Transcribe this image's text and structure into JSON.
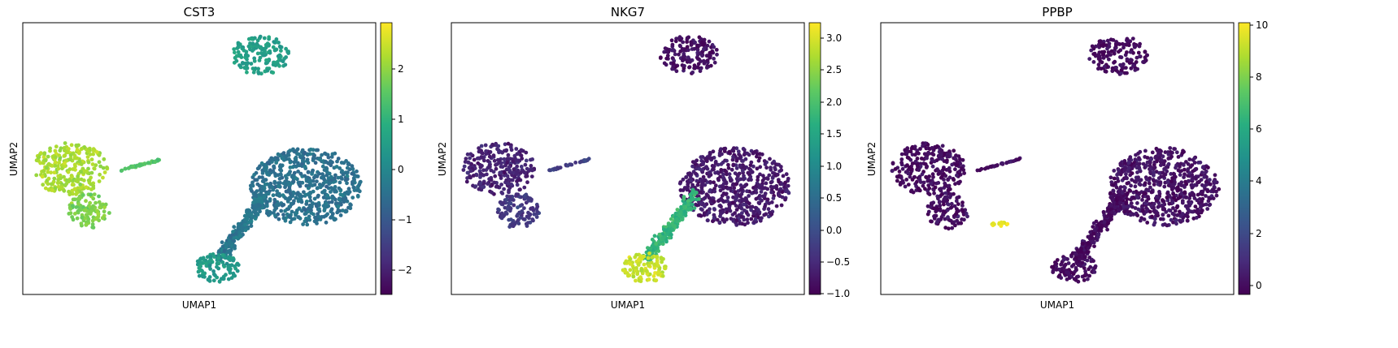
{
  "figure": {
    "panels": [
      {
        "title": "CST3",
        "xlabel": "UMAP1",
        "ylabel": "UMAP2",
        "colorbar": {
          "ticks": [
            "2",
            "1",
            "0",
            "−1",
            "−2"
          ]
        }
      },
      {
        "title": "NKG7",
        "xlabel": "UMAP1",
        "ylabel": "UMAP2",
        "colorbar": {
          "ticks": [
            "3.0",
            "2.5",
            "2.0",
            "1.5",
            "1.0",
            "0.5",
            "0.0",
            "−0.5",
            "−1.0"
          ]
        }
      },
      {
        "title": "PPBP",
        "xlabel": "UMAP1",
        "ylabel": "UMAP2",
        "colorbar": {
          "ticks": [
            "10",
            "8",
            "6",
            "4",
            "2",
            "0"
          ]
        }
      }
    ]
  },
  "chart_data": [
    {
      "type": "scatter",
      "title": "CST3",
      "xlabel": "UMAP1",
      "ylabel": "UMAP2",
      "colormap": "viridis",
      "color_range": [
        -2.5,
        2.9
      ],
      "colorbar_ticks": [
        -2,
        -1,
        0,
        1,
        2
      ],
      "clusters": [
        {
          "region": "top cluster",
          "value": 0.5
        },
        {
          "region": "left upper cluster",
          "value": 2.2
        },
        {
          "region": "left lower cluster",
          "value": 1.8
        },
        {
          "region": "thin strand",
          "value": 1.4
        },
        {
          "region": "large right cluster",
          "value": -0.5
        },
        {
          "region": "lower diagonal",
          "value": -0.4
        },
        {
          "region": "bottom blob",
          "value": 0.4
        }
      ]
    },
    {
      "type": "scatter",
      "title": "NKG7",
      "xlabel": "UMAP1",
      "ylabel": "UMAP2",
      "colormap": "viridis",
      "color_range": [
        -1.0,
        3.25
      ],
      "colorbar_ticks": [
        -1.0,
        -0.5,
        0.0,
        0.5,
        1.0,
        1.5,
        2.0,
        2.5,
        3.0
      ],
      "clusters": [
        {
          "region": "top cluster",
          "value": -0.8
        },
        {
          "region": "left upper cluster",
          "value": -0.6
        },
        {
          "region": "left lower cluster",
          "value": -0.3
        },
        {
          "region": "thin strand",
          "value": -0.2
        },
        {
          "region": "large right cluster",
          "value": -0.7
        },
        {
          "region": "lower diagonal",
          "value": 1.8
        },
        {
          "region": "bottom blob",
          "value": 2.9
        }
      ]
    },
    {
      "type": "scatter",
      "title": "PPBP",
      "xlabel": "UMAP1",
      "ylabel": "UMAP2",
      "colormap": "viridis",
      "color_range": [
        -0.3,
        10
      ],
      "colorbar_ticks": [
        0,
        2,
        4,
        6,
        8,
        10
      ],
      "clusters": [
        {
          "region": "top cluster",
          "value": 0
        },
        {
          "region": "left upper cluster",
          "value": 0
        },
        {
          "region": "left lower cluster",
          "value": 0
        },
        {
          "region": "small end cluster",
          "value": 9.7
        },
        {
          "region": "thin strand",
          "value": 0
        },
        {
          "region": "large right cluster",
          "value": 0.2
        },
        {
          "region": "lower diagonal",
          "value": 0
        },
        {
          "region": "bottom blob",
          "value": 0
        }
      ]
    }
  ]
}
